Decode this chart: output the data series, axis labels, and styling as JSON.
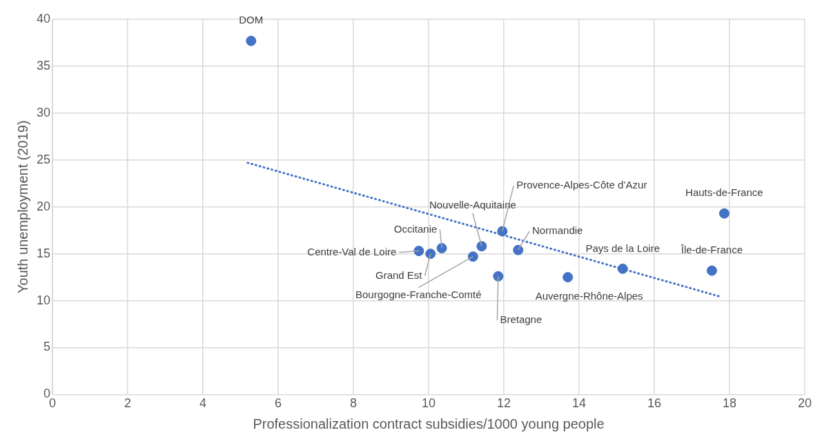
{
  "chart_data": {
    "type": "scatter",
    "xlabel": "Professionalization contract subsidies/1000 young people",
    "ylabel": "Youth unemployment (2019)",
    "x": [
      5.28,
      17.86,
      17.53,
      15.16,
      13.7,
      11.85,
      12.38,
      11.96,
      11.41,
      11.18,
      10.35,
      10.05,
      9.74
    ],
    "values": [
      37.7,
      19.3,
      13.2,
      13.4,
      12.5,
      12.6,
      15.4,
      17.4,
      15.8,
      14.7,
      15.6,
      15.0,
      15.3
    ],
    "color": "#4472c4",
    "marker": "circle",
    "series": [
      {
        "type": "line",
        "x": [
          5.19,
          17.78
        ],
        "values": [
          24.7,
          10.4
        ],
        "color": "#4472c4",
        "line_style": "dotted",
        "marker": "none"
      }
    ],
    "annotations": [
      {
        "text": "DOM",
        "x": 5.28,
        "y": 37.7
      },
      {
        "text": "Hauts-de-France",
        "x": 17.86,
        "y": 19.3
      },
      {
        "text": "Île-de-France",
        "x": 17.53,
        "y": 13.2
      },
      {
        "text": "Pays de la Loire",
        "x": 15.16,
        "y": 13.4
      },
      {
        "text": "Auvergne-Rhône-Alpes",
        "x": 13.7,
        "y": 12.5
      },
      {
        "text": "Bretagne",
        "x": 11.85,
        "y": 12.6
      },
      {
        "text": "Normandie",
        "x": 12.38,
        "y": 15.4
      },
      {
        "text": "Provence-Alpes-Côte d’Azur",
        "x": 11.96,
        "y": 17.4
      },
      {
        "text": "Nouvelle-Aquitaine",
        "x": 11.41,
        "y": 15.8
      },
      {
        "text": "Bourgogne-Franche-Comté",
        "x": 11.18,
        "y": 14.7
      },
      {
        "text": "Occitanie",
        "x": 10.35,
        "y": 15.6
      },
      {
        "text": "Grand Est",
        "x": 10.05,
        "y": 15.0
      },
      {
        "text": "Centre-Val de Loire",
        "x": 9.74,
        "y": 15.3
      }
    ],
    "xlim": [
      0,
      20
    ],
    "xticks": [
      0,
      2,
      4,
      6,
      8,
      10,
      12,
      14,
      16,
      18,
      20
    ],
    "ylim": [
      0,
      40
    ],
    "yticks": [
      0,
      5,
      10,
      15,
      20,
      25,
      30,
      35,
      40
    ],
    "grid": true,
    "legend": false
  }
}
